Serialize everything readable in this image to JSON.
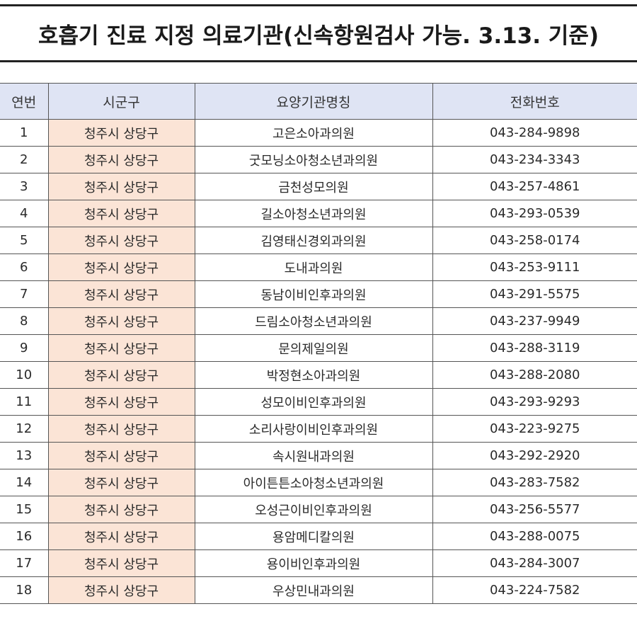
{
  "title": "호흡기 진료 지정 의료기관(신속항원검사 가능. 3.13. 기준)",
  "table": {
    "headers": {
      "no": "연번",
      "area": "시군구",
      "name": "요양기관명칭",
      "phone": "전화번호"
    },
    "rows": [
      {
        "no": "1",
        "area": "청주시 상당구",
        "name": "고은소아과의원",
        "phone": "043-284-9898"
      },
      {
        "no": "2",
        "area": "청주시 상당구",
        "name": "굿모닝소아청소년과의원",
        "phone": "043-234-3343"
      },
      {
        "no": "3",
        "area": "청주시 상당구",
        "name": "금천성모의원",
        "phone": "043-257-4861"
      },
      {
        "no": "4",
        "area": "청주시 상당구",
        "name": "길소아청소년과의원",
        "phone": "043-293-0539"
      },
      {
        "no": "5",
        "area": "청주시 상당구",
        "name": "김영태신경외과의원",
        "phone": "043-258-0174"
      },
      {
        "no": "6",
        "area": "청주시 상당구",
        "name": "도내과의원",
        "phone": "043-253-9111"
      },
      {
        "no": "7",
        "area": "청주시 상당구",
        "name": "동남이비인후과의원",
        "phone": "043-291-5575"
      },
      {
        "no": "8",
        "area": "청주시 상당구",
        "name": "드림소아청소년과의원",
        "phone": "043-237-9949"
      },
      {
        "no": "9",
        "area": "청주시 상당구",
        "name": "문의제일의원",
        "phone": "043-288-3119"
      },
      {
        "no": "10",
        "area": "청주시 상당구",
        "name": "박정현소아과의원",
        "phone": "043-288-2080"
      },
      {
        "no": "11",
        "area": "청주시 상당구",
        "name": "성모이비인후과의원",
        "phone": "043-293-9293"
      },
      {
        "no": "12",
        "area": "청주시 상당구",
        "name": "소리사랑이비인후과의원",
        "phone": "043-223-9275"
      },
      {
        "no": "13",
        "area": "청주시 상당구",
        "name": "속시원내과의원",
        "phone": "043-292-2920"
      },
      {
        "no": "14",
        "area": "청주시 상당구",
        "name": "아이튼튼소아청소년과의원",
        "phone": "043-283-7582"
      },
      {
        "no": "15",
        "area": "청주시 상당구",
        "name": "오성근이비인후과의원",
        "phone": "043-256-5577"
      },
      {
        "no": "16",
        "area": "청주시 상당구",
        "name": "용암메디칼의원",
        "phone": "043-288-0075"
      },
      {
        "no": "17",
        "area": "청주시 상당구",
        "name": "용이비인후과의원",
        "phone": "043-284-3007"
      },
      {
        "no": "18",
        "area": "청주시 상당구",
        "name": "우상민내과의원",
        "phone": "043-224-7582"
      }
    ]
  },
  "colors": {
    "header_bg": "#dfe4f4",
    "area_bg": "#fbe4d6",
    "border": "#555555"
  }
}
